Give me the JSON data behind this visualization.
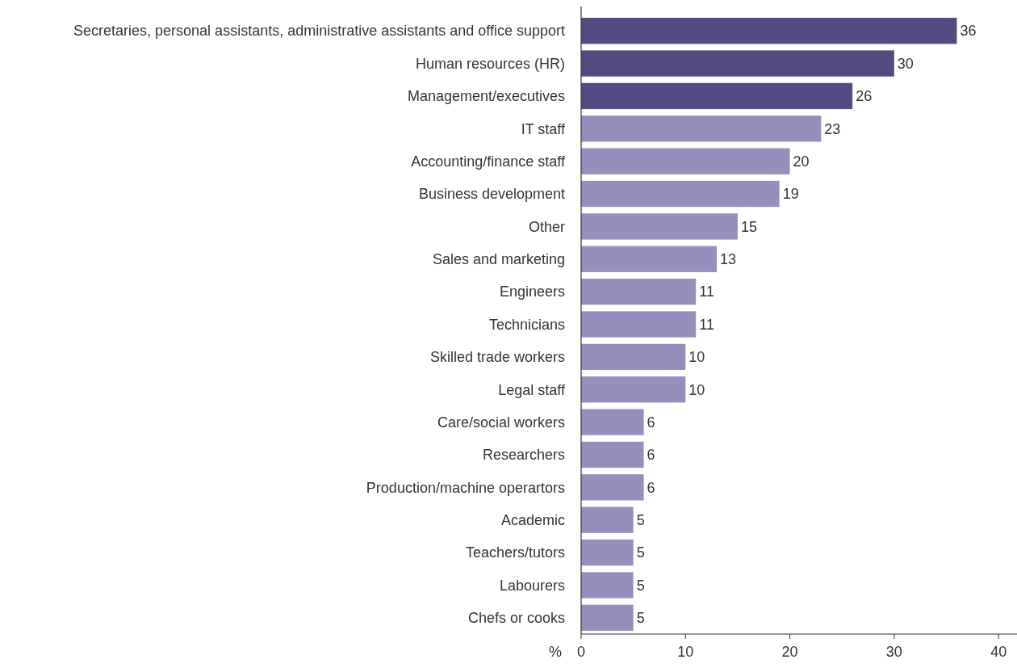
{
  "chart_data": {
    "type": "bar",
    "orientation": "horizontal",
    "xlabel": "%",
    "categories": [
      "Secretaries, personal assistants, administrative assistants and office support",
      "Human resources (HR)",
      "Management/executives",
      "IT staff",
      "Accounting/finance staff",
      "Business development",
      "Other",
      "Sales and marketing",
      "Engineers",
      "Technicians",
      "Skilled trade workers",
      "Legal staff",
      "Care/social workers",
      "Researchers",
      "Production/machine operartors",
      "Academic",
      "Teachers/tutors",
      "Labourers",
      "Chefs or cooks"
    ],
    "values": [
      36,
      30,
      26,
      23,
      20,
      19,
      15,
      13,
      11,
      11,
      10,
      10,
      6,
      6,
      6,
      5,
      5,
      5,
      5
    ],
    "colors": [
      "#524b82",
      "#524b82",
      "#524b82",
      "#9490bb",
      "#9490bb",
      "#9490bb",
      "#9490bb",
      "#9490bb",
      "#9490bb",
      "#9490bb",
      "#9490bb",
      "#9490bb",
      "#9490bb",
      "#9490bb",
      "#9490bb",
      "#9490bb",
      "#9490bb",
      "#9490bb",
      "#9490bb"
    ],
    "xlim": [
      0,
      42
    ],
    "xticks": [
      0,
      10,
      20,
      30,
      40
    ],
    "data_labels": true,
    "grid": false
  }
}
